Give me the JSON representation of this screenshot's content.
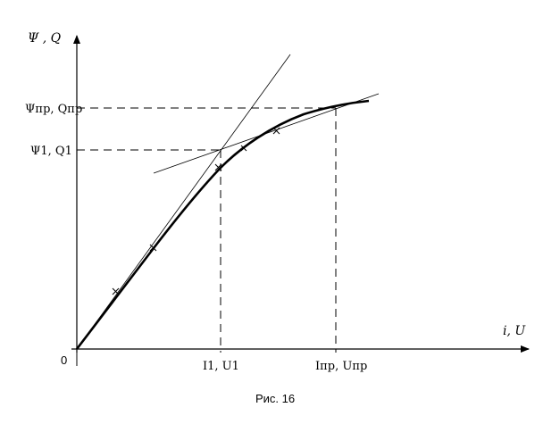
{
  "figure": {
    "caption": "Рис. 16",
    "origin_label": "0",
    "y_axis_label": "Ψ , Q",
    "x_axis_label": "i, U",
    "y_tick_sat_label": "Ψпр, Qпр",
    "y_tick_1_label": "Ψ1, Q1",
    "x_tick_1_label": "I1, U1",
    "x_tick_sat_label": "Iпр, Uпр"
  },
  "colors": {
    "ink": "#000000",
    "background": "#ffffff"
  }
}
